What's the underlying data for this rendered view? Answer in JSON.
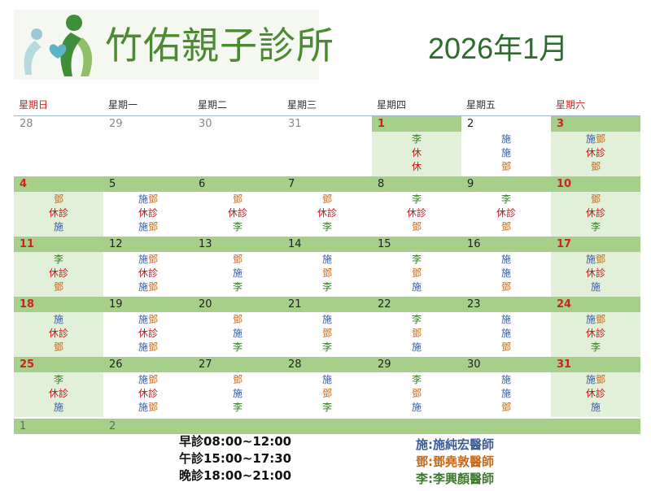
{
  "logo": {
    "text": "竹佑親子診所"
  },
  "title": "2026年1月",
  "weekdays": [
    "星期日",
    "星期一",
    "星期二",
    "星期三",
    "星期四",
    "星期五",
    "星期六"
  ],
  "legend_colors": {
    "施": "#3c5c97",
    "鄧": "#c46a1a",
    "李": "#3c7a2c",
    "休": "#cc1111"
  },
  "weeks": [
    [
      {
        "d": "28",
        "muted": true,
        "slots": []
      },
      {
        "d": "29",
        "muted": true,
        "slots": []
      },
      {
        "d": "30",
        "muted": true,
        "slots": []
      },
      {
        "d": "31",
        "muted": true,
        "slots": []
      },
      {
        "d": "1",
        "red": true,
        "shade": true,
        "slots": [
          [
            "李"
          ],
          [
            "休"
          ],
          [
            "休"
          ]
        ]
      },
      {
        "d": "2",
        "slots": [
          [
            "施"
          ],
          [
            "施"
          ],
          [
            "鄧"
          ]
        ]
      },
      {
        "d": "3",
        "red": true,
        "shade": true,
        "slots": [
          [
            "施",
            "鄧"
          ],
          [
            "休診"
          ],
          [
            "鄧"
          ]
        ]
      }
    ],
    [
      {
        "d": "4",
        "red": true,
        "shade": true,
        "slots": [
          [
            "鄧"
          ],
          [
            "休診"
          ],
          [
            "施"
          ]
        ]
      },
      {
        "d": "5",
        "slots": [
          [
            "施",
            "鄧"
          ],
          [
            "休診"
          ],
          [
            "施",
            "鄧"
          ]
        ]
      },
      {
        "d": "6",
        "slots": [
          [
            "鄧"
          ],
          [
            "休診"
          ],
          [
            "李"
          ]
        ]
      },
      {
        "d": "7",
        "slots": [
          [
            "鄧"
          ],
          [
            "休診"
          ],
          [
            "李"
          ]
        ]
      },
      {
        "d": "8",
        "slots": [
          [
            "李"
          ],
          [
            "休診"
          ],
          [
            "鄧"
          ]
        ]
      },
      {
        "d": "9",
        "slots": [
          [
            "李"
          ],
          [
            "休診"
          ],
          [
            "鄧"
          ]
        ]
      },
      {
        "d": "10",
        "red": true,
        "shade": true,
        "slots": [
          [
            "鄧"
          ],
          [
            "休診"
          ],
          [
            "李"
          ]
        ]
      }
    ],
    [
      {
        "d": "11",
        "red": true,
        "shade": true,
        "slots": [
          [
            "李"
          ],
          [
            "休診"
          ],
          [
            "鄧"
          ]
        ]
      },
      {
        "d": "12",
        "slots": [
          [
            "施",
            "鄧"
          ],
          [
            "休診"
          ],
          [
            "施",
            "鄧"
          ]
        ]
      },
      {
        "d": "13",
        "slots": [
          [
            "鄧"
          ],
          [
            "施"
          ],
          [
            "李"
          ]
        ]
      },
      {
        "d": "14",
        "slots": [
          [
            "施"
          ],
          [
            "鄧"
          ],
          [
            "李"
          ]
        ]
      },
      {
        "d": "15",
        "slots": [
          [
            "李"
          ],
          [
            "鄧"
          ],
          [
            "施"
          ]
        ]
      },
      {
        "d": "16",
        "slots": [
          [
            "施"
          ],
          [
            "施"
          ],
          [
            "鄧"
          ]
        ]
      },
      {
        "d": "17",
        "red": true,
        "shade": true,
        "slots": [
          [
            "施",
            "鄧"
          ],
          [
            "休診"
          ],
          [
            "施"
          ]
        ]
      }
    ],
    [
      {
        "d": "18",
        "red": true,
        "shade": true,
        "slots": [
          [
            "施"
          ],
          [
            "休診"
          ],
          [
            "鄧"
          ]
        ]
      },
      {
        "d": "19",
        "slots": [
          [
            "施",
            "鄧"
          ],
          [
            "休診"
          ],
          [
            "施",
            "鄧"
          ]
        ]
      },
      {
        "d": "20",
        "slots": [
          [
            "鄧"
          ],
          [
            "施"
          ],
          [
            "李"
          ]
        ]
      },
      {
        "d": "21",
        "slots": [
          [
            "施"
          ],
          [
            "鄧"
          ],
          [
            "李"
          ]
        ]
      },
      {
        "d": "22",
        "slots": [
          [
            "李"
          ],
          [
            "鄧"
          ],
          [
            "施"
          ]
        ]
      },
      {
        "d": "23",
        "slots": [
          [
            "施"
          ],
          [
            "施"
          ],
          [
            "鄧"
          ]
        ]
      },
      {
        "d": "24",
        "red": true,
        "shade": true,
        "slots": [
          [
            "施",
            "鄧"
          ],
          [
            "休診"
          ],
          [
            "李"
          ]
        ]
      }
    ],
    [
      {
        "d": "25",
        "red": true,
        "shade": true,
        "slots": [
          [
            "李"
          ],
          [
            "休診"
          ],
          [
            "施"
          ]
        ]
      },
      {
        "d": "26",
        "slots": [
          [
            "施",
            "鄧"
          ],
          [
            "休診"
          ],
          [
            "施",
            "鄧"
          ]
        ]
      },
      {
        "d": "27",
        "slots": [
          [
            "鄧"
          ],
          [
            "施"
          ],
          [
            "李"
          ]
        ]
      },
      {
        "d": "28",
        "slots": [
          [
            "施"
          ],
          [
            "鄧"
          ],
          [
            "李"
          ]
        ]
      },
      {
        "d": "29",
        "slots": [
          [
            "李"
          ],
          [
            "鄧"
          ],
          [
            "施"
          ]
        ]
      },
      {
        "d": "30",
        "slots": [
          [
            "施"
          ],
          [
            "施"
          ],
          [
            "鄧"
          ]
        ]
      },
      {
        "d": "31",
        "red": true,
        "shade": true,
        "slots": [
          [
            "施",
            "鄧"
          ],
          [
            "休診"
          ],
          [
            "施"
          ]
        ]
      }
    ]
  ],
  "trailing_days": [
    "1",
    "2"
  ],
  "hours": [
    "早診08:00~12:00",
    "午診15:00~17:30",
    "晚診18:00~21:00"
  ],
  "doctors": [
    {
      "text": "施:施純宏醫師",
      "key": "施"
    },
    {
      "text": "鄧:鄧堯敦醫師",
      "key": "鄧"
    },
    {
      "text": "李:李興顏醫師",
      "key": "李"
    }
  ]
}
